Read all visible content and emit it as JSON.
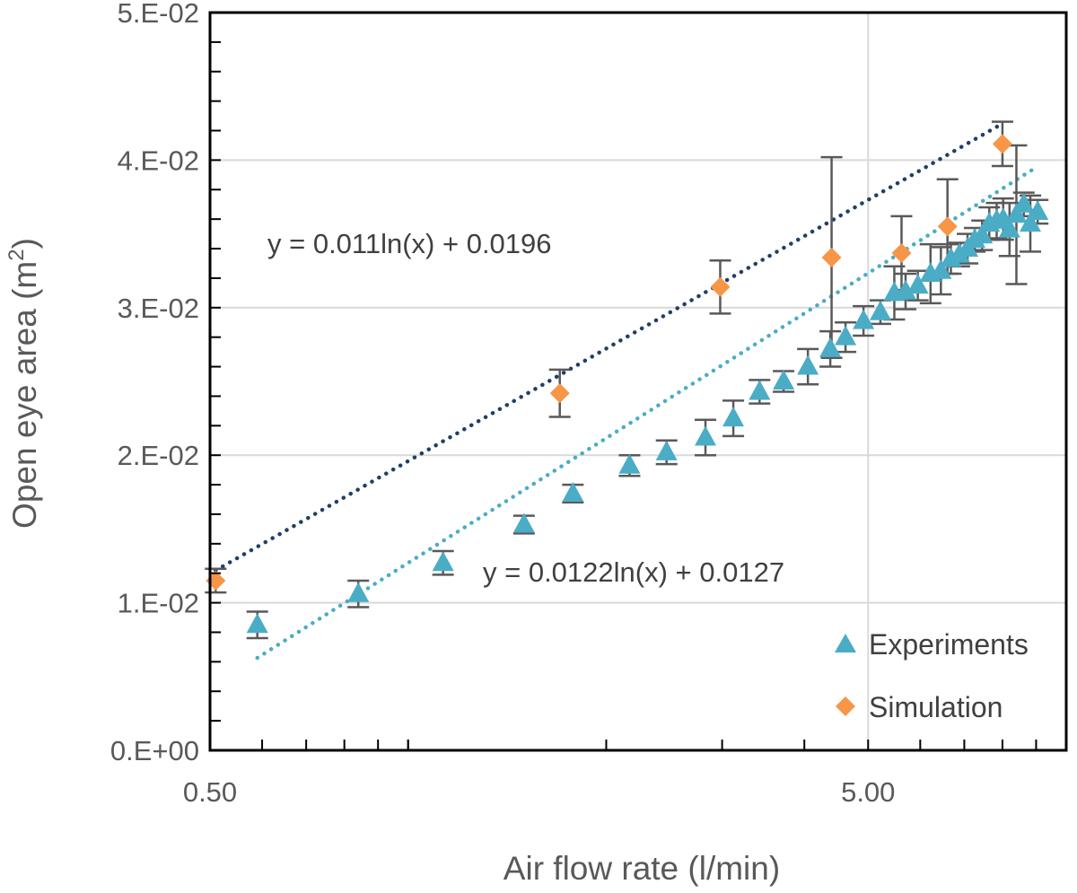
{
  "chart_data": {
    "type": "scatter",
    "xlabel": "Air flow rate (l/min)",
    "ylabel": "Open eye area (m²)",
    "ylabel_parts": {
      "main": "Open eye area (m",
      "sup": "2",
      "end": ")"
    },
    "x_scale": "log",
    "xlim": [
      0.5,
      10
    ],
    "ylim": [
      0,
      0.05
    ],
    "x_ticks": [
      {
        "value": 0.5,
        "label": "0.50"
      },
      {
        "value": 5,
        "label": "5.00"
      }
    ],
    "y_ticks": [
      {
        "value": 0,
        "label": "0.E+00"
      },
      {
        "value": 0.01,
        "label": "1.E-02"
      },
      {
        "value": 0.02,
        "label": "2.E-02"
      },
      {
        "value": 0.03,
        "label": "3.E-02"
      },
      {
        "value": 0.04,
        "label": "4.E-02"
      },
      {
        "value": 0.05,
        "label": "5.E-02"
      }
    ],
    "grid": true,
    "legend_position": "bottom-right",
    "series": [
      {
        "name": "Experiments",
        "marker": "triangle",
        "color": "#4bacc6",
        "points": [
          {
            "x": 0.59,
            "y": 0.0085,
            "err": 0.0009
          },
          {
            "x": 0.84,
            "y": 0.0106,
            "err": 0.0009
          },
          {
            "x": 1.13,
            "y": 0.0127,
            "err": 0.0008
          },
          {
            "x": 1.5,
            "y": 0.0153,
            "err": 0.0006
          },
          {
            "x": 1.78,
            "y": 0.0174,
            "err": 0.0006
          },
          {
            "x": 2.17,
            "y": 0.0193,
            "err": 0.0007
          },
          {
            "x": 2.47,
            "y": 0.0202,
            "err": 0.0008
          },
          {
            "x": 2.83,
            "y": 0.0212,
            "err": 0.0012
          },
          {
            "x": 3.12,
            "y": 0.0225,
            "err": 0.0012
          },
          {
            "x": 3.42,
            "y": 0.0243,
            "err": 0.0008
          },
          {
            "x": 3.72,
            "y": 0.025,
            "err": 0.0007
          },
          {
            "x": 4.05,
            "y": 0.026,
            "err": 0.0012
          },
          {
            "x": 4.38,
            "y": 0.0272,
            "err": 0.0012
          },
          {
            "x": 4.62,
            "y": 0.028,
            "err": 0.001
          },
          {
            "x": 4.92,
            "y": 0.0291,
            "err": 0.001
          },
          {
            "x": 5.22,
            "y": 0.0297,
            "err": 0.0008
          },
          {
            "x": 5.48,
            "y": 0.031,
            "err": 0.0018
          },
          {
            "x": 5.7,
            "y": 0.0311,
            "err": 0.0012
          },
          {
            "x": 5.95,
            "y": 0.0315,
            "err": 0.001
          },
          {
            "x": 6.22,
            "y": 0.0323,
            "err": 0.002
          },
          {
            "x": 6.45,
            "y": 0.0325,
            "err": 0.0016
          },
          {
            "x": 6.68,
            "y": 0.0333,
            "err": 0.001
          },
          {
            "x": 6.88,
            "y": 0.0336,
            "err": 0.0008
          },
          {
            "x": 7.08,
            "y": 0.034,
            "err": 0.001
          },
          {
            "x": 7.26,
            "y": 0.0346,
            "err": 0.0008
          },
          {
            "x": 7.45,
            "y": 0.0349,
            "err": 0.001
          },
          {
            "x": 7.64,
            "y": 0.0357,
            "err": 0.0011
          },
          {
            "x": 7.84,
            "y": 0.0359,
            "err": 0.0012
          },
          {
            "x": 8.02,
            "y": 0.036,
            "err": 0.0014
          },
          {
            "x": 8.2,
            "y": 0.0353,
            "err": 0.0018
          },
          {
            "x": 8.4,
            "y": 0.0363,
            "err": 0.0047
          },
          {
            "x": 8.62,
            "y": 0.037,
            "err": 0.0008
          },
          {
            "x": 8.82,
            "y": 0.0357,
            "err": 0.0019
          },
          {
            "x": 9.05,
            "y": 0.0365,
            "err": 0.0008
          }
        ],
        "trendline": {
          "label": "y = 0.0122ln(x) + 0.0127",
          "a": 0.0122,
          "b": 0.0127,
          "x_from": 0.59,
          "x_to": 9.05,
          "color": "#4bacc6"
        }
      },
      {
        "name": "Simulation",
        "marker": "diamond",
        "color": "#f79646",
        "points": [
          {
            "x": 0.51,
            "y": 0.0115,
            "err": 0.0008
          },
          {
            "x": 1.7,
            "y": 0.0242,
            "err": 0.0016
          },
          {
            "x": 2.98,
            "y": 0.0314,
            "err": 0.0018
          },
          {
            "x": 4.4,
            "y": 0.0334,
            "err": 0.0068
          },
          {
            "x": 5.62,
            "y": 0.0337,
            "err": 0.0025
          },
          {
            "x": 6.6,
            "y": 0.0355,
            "err": 0.0032
          },
          {
            "x": 8.0,
            "y": 0.0411,
            "err": 0.0015
          }
        ],
        "trendline": {
          "label": "y = 0.011ln(x) + 0.0196",
          "a": 0.011,
          "b": 0.0196,
          "x_from": 0.51,
          "x_to": 8.0,
          "color": "#1f3f67"
        }
      }
    ]
  }
}
